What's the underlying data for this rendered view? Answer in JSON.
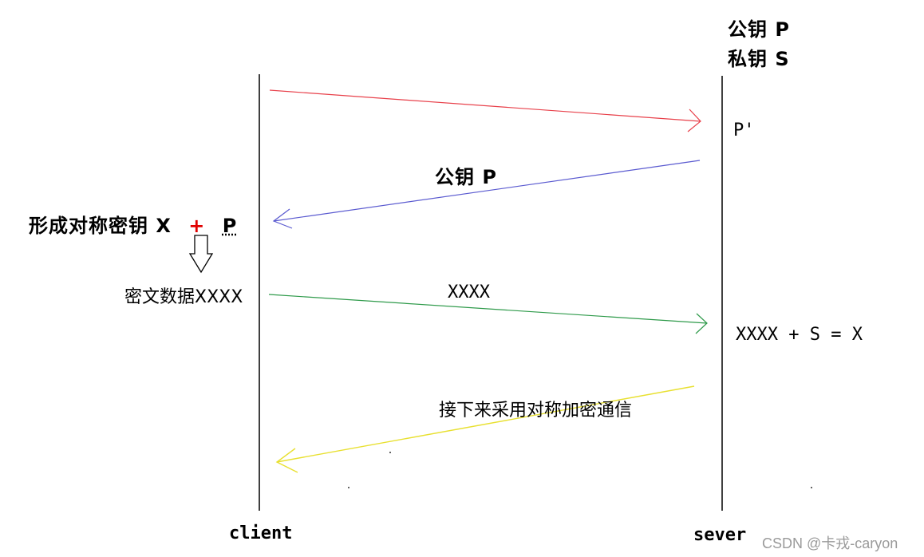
{
  "server_keys": {
    "public": "公钥 P",
    "private": "私钥 S"
  },
  "server_received_label": "P'",
  "blue_arrow_label": "公钥 P",
  "client_step": {
    "prefix": "形成对称密钥 X",
    "plus": "+",
    "suffix": "P"
  },
  "client_cipher_label": "密文数据XXXX",
  "green_arrow_label": "XXXX",
  "server_decrypt_label": "XXXX + S = X",
  "yellow_arrow_label": "接下来采用对称加密通信",
  "client_label": "client",
  "server_label": "sever",
  "watermark": "CSDN @卡戎-caryon",
  "colors": {
    "red_arrow": "#e8404a",
    "blue_arrow": "#5a5ad0",
    "green_arrow": "#2e9a4a",
    "yellow_arrow": "#e8e030",
    "plus": "#e00000"
  }
}
